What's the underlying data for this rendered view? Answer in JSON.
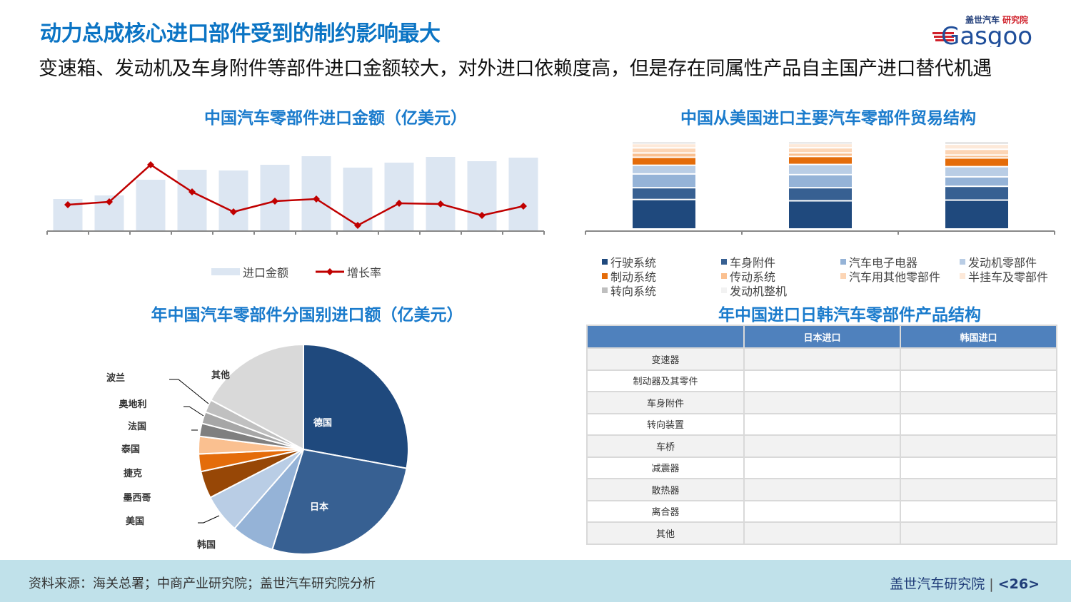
{
  "title": "动力总成核心进口部件受到的制约影响最大",
  "subtitle": "变速箱、发动机及车身附件等部件进口金额较大，对外进口依赖度高，但是存在同属性产品自主国产进口替代机遇",
  "logo": {
    "top": "盖世汽车",
    "accent": "研究院",
    "word": "Gasgoo"
  },
  "chart_data": [
    {
      "type": "bar+line",
      "title": "中国汽车零部件进口金额（亿美元）",
      "categories": [
        "",
        "",
        "",
        "",
        "",
        "",
        "",
        "",
        "",
        "",
        "",
        ""
      ],
      "series": [
        {
          "name": "进口金额",
          "type": "bar",
          "color": "#dce6f2",
          "values": [
            45,
            50,
            72,
            86,
            85,
            93,
            105,
            89,
            96,
            104,
            98,
            103
          ]
        },
        {
          "name": "增长率",
          "type": "line",
          "color": "#c00000",
          "values": [
            37,
            41,
            93,
            55,
            27,
            42,
            45,
            8,
            39,
            38,
            22,
            35
          ]
        }
      ],
      "legend": "bottom",
      "grid": false
    },
    {
      "type": "stacked_bar",
      "title": "中国从美国进口主要汽车零部件贸易结构",
      "categories": [
        "",
        "",
        ""
      ],
      "series": [
        {
          "name": "行驶系统",
          "color": "#1f497d",
          "values": [
            29.5,
            28.2,
            28.9
          ]
        },
        {
          "name": "车身附件",
          "color": "#376092",
          "values": [
            11.8,
            13.1,
            13.8
          ]
        },
        {
          "name": "汽车电子电器",
          "color": "#95b3d7",
          "values": [
            13.8,
            13.1,
            9.5
          ]
        },
        {
          "name": "发动机零部件",
          "color": "#b9cde5",
          "values": [
            8.7,
            10.2,
            10.2
          ]
        },
        {
          "name": "制动系统",
          "color": "#e46c0a",
          "values": [
            8.0,
            8.0,
            8.7
          ]
        },
        {
          "name": "传动系统",
          "color": "#fac090",
          "values": [
            4.3,
            3.6,
            2.9
          ]
        },
        {
          "name": "汽车用其他零部件",
          "color": "#fcd5b5",
          "values": [
            5.1,
            5.1,
            5.8
          ]
        },
        {
          "name": "半挂车及零部件",
          "color": "#fde9d9",
          "values": [
            4.3,
            4.3,
            5.1
          ]
        },
        {
          "name": "转向系统",
          "color": "#bfbfbf",
          "values": [
            1.5,
            1.5,
            2.2
          ]
        },
        {
          "name": "发动机整机",
          "color": "#f2f2f2",
          "values": [
            0.7,
            0.7,
            0.7
          ]
        }
      ],
      "legend": "bottom",
      "grid": false
    },
    {
      "type": "pie",
      "title": "年中国汽车零部件分国别进口额（亿美元）",
      "slices": [
        {
          "label": "德国",
          "value": 27.9,
          "color": "#1f497d"
        },
        {
          "label": "日本",
          "value": 26.9,
          "color": "#376092"
        },
        {
          "label": "韩国",
          "value": 6.6,
          "color": "#95b3d7"
        },
        {
          "label": "美国",
          "value": 6.0,
          "color": "#b9cde5"
        },
        {
          "label": "墨西哥",
          "value": 4.2,
          "color": "#974706"
        },
        {
          "label": "捷克",
          "value": 2.7,
          "color": "#e46c0a"
        },
        {
          "label": "泰国",
          "value": 2.7,
          "color": "#fac090"
        },
        {
          "label": "法国",
          "value": 2.0,
          "color": "#7f7f7f"
        },
        {
          "label": "奥地利",
          "value": 1.8,
          "color": "#a6a6a6"
        },
        {
          "label": "波兰",
          "value": 2.0,
          "color": "#c0c0c0"
        },
        {
          "label": "其他",
          "value": 17.2,
          "color": "#d9d9d9"
        }
      ]
    },
    {
      "type": "table",
      "title": "年中国进口日韩汽车零部件产品结构",
      "columns": [
        "",
        "日本进口",
        "韩国进口"
      ],
      "rows": [
        [
          "变速器",
          "",
          ""
        ],
        [
          "制动器及其零件",
          "",
          ""
        ],
        [
          "车身附件",
          "",
          ""
        ],
        [
          "转向装置",
          "",
          ""
        ],
        [
          "车桥",
          "",
          ""
        ],
        [
          "减震器",
          "",
          ""
        ],
        [
          "散热器",
          "",
          ""
        ],
        [
          "离合器",
          "",
          ""
        ],
        [
          "其他",
          "",
          ""
        ]
      ]
    }
  ],
  "footer": {
    "source": "资料来源：海关总署；中商产业研究院；盖世汽车研究院分析",
    "brand": "盖世汽车研究院",
    "page": "<26>"
  }
}
